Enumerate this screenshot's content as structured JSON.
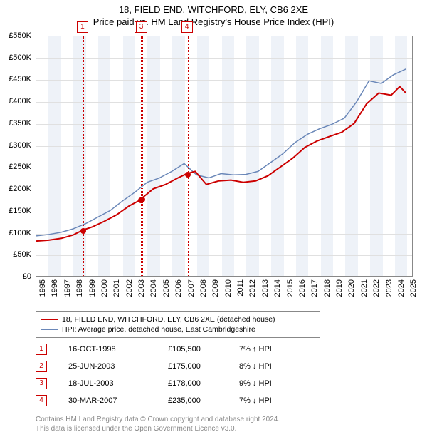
{
  "title": {
    "line1": "18, FIELD END, WITCHFORD, ELY, CB6 2XE",
    "line2": "Price paid vs. HM Land Registry's House Price Index (HPI)",
    "fontsize": 13
  },
  "chart": {
    "type": "line",
    "background_color": "#ffffff",
    "grid_color": "#e0e0e0",
    "border_color": "#888888",
    "x": {
      "min": 1995,
      "max": 2025.5,
      "ticks": [
        1995,
        1996,
        1997,
        1998,
        1999,
        2000,
        2001,
        2002,
        2003,
        2004,
        2005,
        2006,
        2007,
        2008,
        2009,
        2010,
        2011,
        2012,
        2013,
        2014,
        2015,
        2016,
        2017,
        2018,
        2019,
        2020,
        2021,
        2022,
        2023,
        2024,
        2025
      ],
      "label_fontsize": 11
    },
    "y": {
      "min": 0,
      "max": 550000,
      "ticks": [
        0,
        50000,
        100000,
        150000,
        200000,
        250000,
        300000,
        350000,
        400000,
        450000,
        500000,
        550000
      ],
      "tick_labels": [
        "£0",
        "£50K",
        "£100K",
        "£150K",
        "£200K",
        "£250K",
        "£300K",
        "£350K",
        "£400K",
        "£450K",
        "£500K",
        "£550K"
      ],
      "label_fontsize": 11
    },
    "alt_band_color": "#eef2f8",
    "series": [
      {
        "id": "property",
        "label": "18, FIELD END, WITCHFORD, ELY, CB6 2XE (detached house)",
        "color": "#cc0000",
        "line_width": 2,
        "data": [
          [
            1995,
            80000
          ],
          [
            1996,
            82000
          ],
          [
            1997,
            86000
          ],
          [
            1998,
            94000
          ],
          [
            1998.79,
            105500
          ],
          [
            1999.5,
            112000
          ],
          [
            2000.5,
            125000
          ],
          [
            2001.5,
            140000
          ],
          [
            2002.5,
            160000
          ],
          [
            2003.48,
            175000
          ],
          [
            2003.55,
            178000
          ],
          [
            2004.5,
            200000
          ],
          [
            2005.5,
            210000
          ],
          [
            2006.5,
            225000
          ],
          [
            2007.24,
            235000
          ],
          [
            2007.9,
            240000
          ],
          [
            2008.8,
            210000
          ],
          [
            2009.8,
            218000
          ],
          [
            2010.8,
            220000
          ],
          [
            2011.8,
            215000
          ],
          [
            2012.8,
            218000
          ],
          [
            2013.8,
            230000
          ],
          [
            2014.8,
            250000
          ],
          [
            2015.8,
            270000
          ],
          [
            2016.8,
            295000
          ],
          [
            2017.8,
            310000
          ],
          [
            2018.8,
            320000
          ],
          [
            2019.8,
            330000
          ],
          [
            2020.8,
            350000
          ],
          [
            2021.8,
            395000
          ],
          [
            2022.8,
            420000
          ],
          [
            2023.8,
            415000
          ],
          [
            2024.5,
            435000
          ],
          [
            2025.0,
            420000
          ]
        ]
      },
      {
        "id": "hpi",
        "label": "HPI: Average price, detached house, East Cambridgeshire",
        "color": "#6a87b8",
        "line_width": 1.5,
        "data": [
          [
            1995,
            92000
          ],
          [
            1996,
            95000
          ],
          [
            1997,
            100000
          ],
          [
            1998,
            108000
          ],
          [
            1999,
            120000
          ],
          [
            2000,
            135000
          ],
          [
            2001,
            150000
          ],
          [
            2002,
            172000
          ],
          [
            2003,
            192000
          ],
          [
            2004,
            215000
          ],
          [
            2005,
            225000
          ],
          [
            2006,
            240000
          ],
          [
            2007,
            258000
          ],
          [
            2008,
            232000
          ],
          [
            2009,
            225000
          ],
          [
            2010,
            235000
          ],
          [
            2011,
            232000
          ],
          [
            2012,
            233000
          ],
          [
            2013,
            240000
          ],
          [
            2014,
            260000
          ],
          [
            2015,
            280000
          ],
          [
            2016,
            306000
          ],
          [
            2017,
            325000
          ],
          [
            2018,
            338000
          ],
          [
            2019,
            348000
          ],
          [
            2020,
            362000
          ],
          [
            2021,
            400000
          ],
          [
            2022,
            448000
          ],
          [
            2023,
            442000
          ],
          [
            2024,
            462000
          ],
          [
            2025,
            475000
          ]
        ]
      }
    ],
    "markers": [
      {
        "n": "1",
        "x": 1998.79,
        "y": 105500
      },
      {
        "n": "2",
        "x": 2003.48,
        "y": 175000
      },
      {
        "n": "3",
        "x": 2003.55,
        "y": 178000
      },
      {
        "n": "4",
        "x": 2007.24,
        "y": 235000
      }
    ]
  },
  "legend": {
    "border_color": "#888888",
    "fontsize": 10.5,
    "items": [
      {
        "color": "#cc0000",
        "label": "18, FIELD END, WITCHFORD, ELY, CB6 2XE (detached house)"
      },
      {
        "color": "#6a87b8",
        "label": "HPI: Average price, detached house, East Cambridgeshire"
      }
    ]
  },
  "transactions": {
    "num_color": "#cc0000",
    "fontsize": 11,
    "arrow_up": "↑",
    "arrow_down": "↓",
    "hpi_label": "HPI",
    "rows": [
      {
        "n": "1",
        "date": "16-OCT-1998",
        "price": "£105,500",
        "delta": "7%",
        "dir": "up"
      },
      {
        "n": "2",
        "date": "25-JUN-2003",
        "price": "£175,000",
        "delta": "8%",
        "dir": "down"
      },
      {
        "n": "3",
        "date": "18-JUL-2003",
        "price": "£178,000",
        "delta": "9%",
        "dir": "down"
      },
      {
        "n": "4",
        "date": "30-MAR-2007",
        "price": "£235,000",
        "delta": "7%",
        "dir": "down"
      }
    ]
  },
  "footnote": {
    "line1": "Contains HM Land Registry data © Crown copyright and database right 2024.",
    "line2": "This data is licensed under the Open Government Licence v3.0.",
    "color": "#888888",
    "fontsize": 10
  }
}
